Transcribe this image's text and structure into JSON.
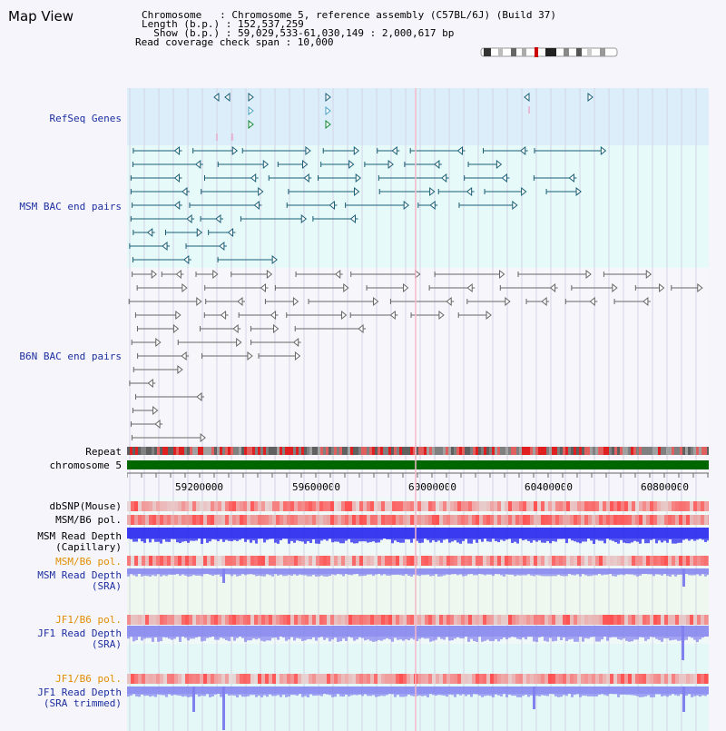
{
  "page": {
    "title": "Map View"
  },
  "header": {
    "line1": "Chromosome   : Chromosome 5, reference assembly (C57BL/6J) (Build 37)",
    "line2": "Length (b.p.) : 152,537,259",
    "line3": "  Show (b.p.) : 59,029,533-61,030,149 : 2,000,617 bp",
    "line4": "Read coverage check span : 10,000"
  },
  "tracks": {
    "refseq": "RefSeq Genes",
    "msm_bac": "MSM BAC end pairs",
    "b6n_bac": "B6N BAC end pairs",
    "repeat": "Repeat",
    "chromosome": "chromosome 5",
    "dbsnp": "dbSNP(Mouse)",
    "msm_b6_pol": "MSM/B6 pol.",
    "msm_depth_cap_1": "MSM Read Depth",
    "msm_depth_cap_2": "(Capillary)",
    "msm_b6_pol_2": "MSM/B6 pol.",
    "msm_depth_sra_1": "MSM Read Depth",
    "msm_depth_sra_2": "(SRA)",
    "jf1_b6_pol": "JF1/B6 pol.",
    "jf1_depth_sra_1": "JF1 Read Depth",
    "jf1_depth_sra_2": "(SRA)",
    "jf1_b6_pol_2": "JF1/B6 pol.",
    "jf1_depth_trim_1": "JF1 Read Depth",
    "jf1_depth_trim_2": "(SRA trimmed)"
  },
  "axis": {
    "ticks": [
      "59200000",
      "59600000",
      "60000000",
      "60400000",
      "60800000"
    ]
  },
  "colors": {
    "refseq_bg": "#dbeefa",
    "msm_bac_bg": "#e6fafa",
    "b6n_bac_bg": "#f7f7fb",
    "chromosome": "#006600",
    "msm_feature": "#1b5e75",
    "b6n_feature": "#666666",
    "snp": "#e8413d",
    "depth_capillary": "#1a1aee",
    "depth_sra": "#8080ee",
    "track_label_blue": "#1d2fa0",
    "track_label_orange": "#e08e00"
  }
}
